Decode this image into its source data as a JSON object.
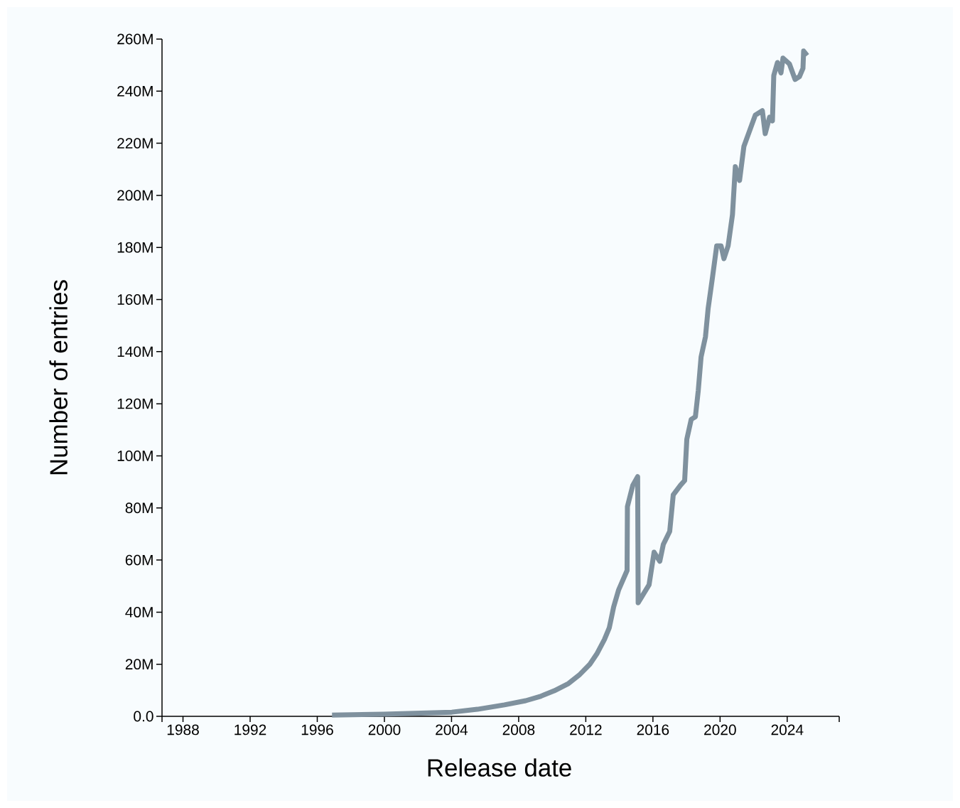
{
  "chart_data": {
    "type": "line",
    "xlabel": "Release date",
    "ylabel": "Number of entries",
    "x": [
      1996.88,
      1999.94,
      2004.02,
      2005.54,
      2007.15,
      2008.42,
      2009.27,
      2010.12,
      2010.97,
      2011.6,
      2012.24,
      2012.66,
      2013.11,
      2013.4,
      2013.66,
      2013.96,
      2014.46,
      2014.48,
      2014.8,
      2015.09,
      2015.12,
      2015.77,
      2016.07,
      2016.41,
      2016.62,
      2017.0,
      2017.21,
      2017.64,
      2017.89,
      2018.02,
      2018.28,
      2018.53,
      2018.7,
      2018.87,
      2019.13,
      2019.29,
      2019.55,
      2019.8,
      2020.06,
      2020.23,
      2020.48,
      2020.74,
      2020.91,
      2021.16,
      2021.42,
      2022.1,
      2022.52,
      2022.69,
      2022.95,
      2023.12,
      2023.2,
      2023.42,
      2023.63,
      2023.75,
      2024.13,
      2024.47,
      2024.73,
      2024.94,
      2024.98,
      2025.19
    ],
    "series": [
      {
        "color": "#7f919e",
        "values": [
          500000,
          800000,
          1600000,
          2700000,
          4400000,
          6000000,
          7600000,
          9800000,
          12600000,
          15800000,
          20000000,
          24000000,
          29500000,
          34000000,
          42000000,
          48600000,
          56000000,
          80500000,
          88700000,
          92000000,
          43600000,
          50500000,
          63000000,
          59500000,
          66000000,
          71000000,
          85000000,
          88700000,
          90500000,
          106400000,
          114000000,
          115000000,
          125000000,
          138000000,
          145700000,
          156600000,
          168600000,
          180600000,
          180600000,
          175700000,
          180600000,
          192600000,
          211000000,
          205700000,
          218800000,
          230800000,
          232500000,
          223700000,
          230000000,
          228600000,
          246000000,
          251000000,
          247000000,
          252700000,
          250500000,
          244500000,
          245600000,
          248800000,
          255400000,
          253700000
        ]
      }
    ],
    "xlim": [
      1986.75,
      2027.1
    ],
    "xticks": [
      {
        "value": 1986.75,
        "label": null
      },
      {
        "value": 1988,
        "label": "1988"
      },
      {
        "value": 1992,
        "label": "1992"
      },
      {
        "value": 1996,
        "label": "1996"
      },
      {
        "value": 2000,
        "label": "2000"
      },
      {
        "value": 2004,
        "label": "2004"
      },
      {
        "value": 2008,
        "label": "2008"
      },
      {
        "value": 2012,
        "label": "2012"
      },
      {
        "value": 2016,
        "label": "2016"
      },
      {
        "value": 2020,
        "label": "2020"
      },
      {
        "value": 2024,
        "label": "2024"
      },
      {
        "value": 2027.1,
        "label": null
      }
    ],
    "ylim": [
      0,
      260000000
    ],
    "yticks": [
      {
        "value": 0,
        "label": "0.0"
      },
      {
        "value": 20000000,
        "label": "20M"
      },
      {
        "value": 40000000,
        "label": "40M"
      },
      {
        "value": 60000000,
        "label": "60M"
      },
      {
        "value": 80000000,
        "label": "80M"
      },
      {
        "value": 100000000,
        "label": "100M"
      },
      {
        "value": 120000000,
        "label": "120M"
      },
      {
        "value": 140000000,
        "label": "140M"
      },
      {
        "value": 160000000,
        "label": "160M"
      },
      {
        "value": 180000000,
        "label": "180M"
      },
      {
        "value": 200000000,
        "label": "200M"
      },
      {
        "value": 220000000,
        "label": "220M"
      },
      {
        "value": 240000000,
        "label": "240M"
      },
      {
        "value": 260000000,
        "label": "260M"
      }
    ]
  }
}
